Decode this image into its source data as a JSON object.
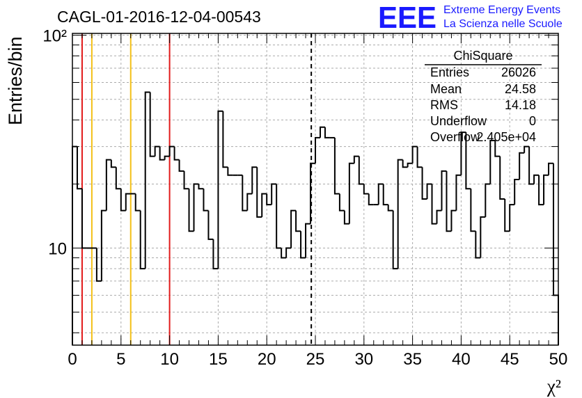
{
  "title": "CAGL-01-2016-12-04-00543",
  "logo": {
    "mark": "EEE",
    "line1": "Extreme Energy Events",
    "line2": "La Scienza nelle Scuole",
    "color": "#1a1aff"
  },
  "stats_box": {
    "title": "ChiSquare",
    "rows": [
      {
        "label": "Entries",
        "value": "26026"
      },
      {
        "label": "Mean",
        "value": "24.58"
      },
      {
        "label": "RMS",
        "value": "14.18"
      },
      {
        "label": "Underflow",
        "value": "0"
      },
      {
        "label": "Overflow",
        "value": "2.405e+04"
      }
    ]
  },
  "chart_data": {
    "type": "bar",
    "style": "step-histogram",
    "title": "CAGL-01-2016-12-04-00543",
    "xlabel": "χ²",
    "ylabel": "Entries/bin",
    "xlim": [
      0,
      50
    ],
    "ylim": [
      3.5,
      102
    ],
    "yscale": "log",
    "grid": true,
    "bin_width": 0.5,
    "x_ticks": [
      "0",
      "5",
      "10",
      "15",
      "20",
      "25",
      "30",
      "35",
      "40",
      "45",
      "50"
    ],
    "y_ticks": [
      {
        "value": 10,
        "label": "10"
      },
      {
        "value": 100,
        "label": "10²"
      }
    ],
    "values": [
      30,
      19,
      10,
      10,
      10,
      7,
      15,
      26,
      24,
      19,
      15,
      18,
      18,
      15,
      8,
      54,
      27,
      30,
      26,
      27,
      30,
      26,
      23,
      19,
      12,
      20,
      19,
      15,
      11,
      8,
      44,
      24,
      22,
      22,
      22,
      15,
      18,
      24,
      14,
      18,
      16,
      20,
      10,
      9,
      10,
      15,
      12,
      9,
      13,
      25,
      33,
      37,
      33,
      33,
      18,
      15,
      13,
      25,
      27,
      20,
      18,
      16,
      16,
      20,
      16,
      15,
      8,
      26,
      24,
      25,
      30,
      24,
      17,
      20,
      13,
      15,
      23,
      12,
      15,
      22,
      35,
      19,
      12,
      9,
      14,
      20,
      32,
      27,
      17,
      12,
      16,
      21,
      28,
      30,
      20,
      22,
      16,
      22,
      25,
      6
    ],
    "markers": [
      {
        "x": 1,
        "color": "#e21b1b",
        "style": "solid"
      },
      {
        "x": 2,
        "color": "#f4c017",
        "style": "solid"
      },
      {
        "x": 6,
        "color": "#f4c017",
        "style": "solid"
      },
      {
        "x": 10,
        "color": "#e21b1b",
        "style": "solid"
      },
      {
        "x": 24.58,
        "color": "#000000",
        "style": "dashed"
      }
    ]
  }
}
